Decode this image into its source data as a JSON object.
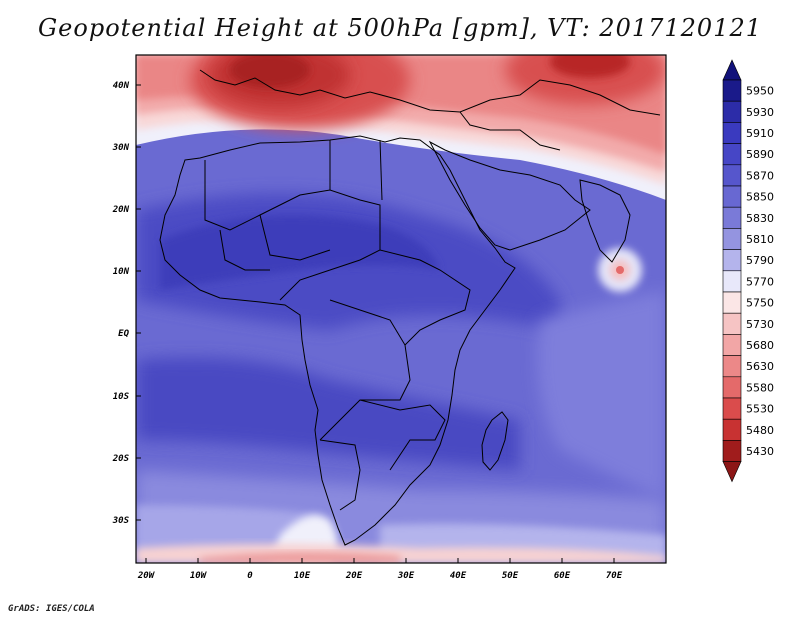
{
  "title": "Geopotential Height at 500hPa [gpm], VT: 2017120121",
  "footer": "GrADS: IGES/COLA",
  "map": {
    "variable": "Geopotential Height at 500hPa",
    "units": "gpm",
    "valid_time": "2017120121",
    "lon_labels": [
      "20W",
      "10W",
      "0",
      "10E",
      "20E",
      "30E",
      "40E",
      "50E",
      "60E",
      "70E"
    ],
    "lat_labels": [
      "40N",
      "30N",
      "20N",
      "10N",
      "EQ",
      "10S",
      "20S",
      "30S"
    ]
  },
  "colorbar": {
    "levels": [
      "5950",
      "5930",
      "5910",
      "5890",
      "5870",
      "5850",
      "5830",
      "5810",
      "5790",
      "5770",
      "5750",
      "5730",
      "5680",
      "5630",
      "5580",
      "5530",
      "5480",
      "5430"
    ],
    "colors": [
      "#1a1a8a",
      "#2c2ca8",
      "#3a3abf",
      "#4646c6",
      "#5656cc",
      "#6868d2",
      "#7a7ad8",
      "#9494e0",
      "#b4b4ec",
      "#e8e8fa",
      "#fbe6e6",
      "#f6c4c4",
      "#f2a6a6",
      "#ec8888",
      "#e46a6a",
      "#da4c4c",
      "#c83232",
      "#a01c1c"
    ],
    "top_arrow_color": "#12127a",
    "bottom_arrow_color": "#8c1616"
  }
}
